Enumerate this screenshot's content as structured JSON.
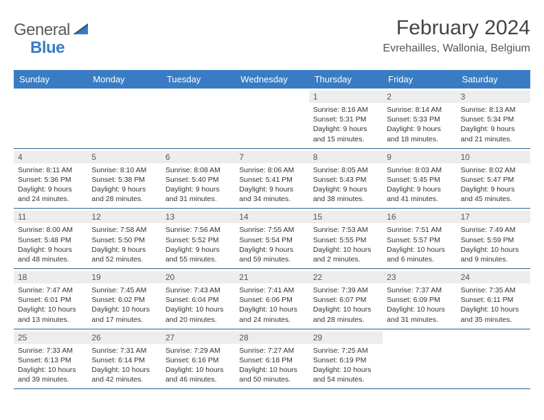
{
  "logo": {
    "word1": "General",
    "word2": "Blue"
  },
  "header": {
    "month_title": "February 2024",
    "location": "Evrehailles, Wallonia, Belgium"
  },
  "colors": {
    "header_bg": "#3a7cc4",
    "header_text": "#ffffff",
    "band_bg": "#ededed",
    "rule": "#2b5d8c"
  },
  "days_of_week": [
    "Sunday",
    "Monday",
    "Tuesday",
    "Wednesday",
    "Thursday",
    "Friday",
    "Saturday"
  ],
  "weeks": [
    [
      {
        "num": "",
        "sunrise": "",
        "sunset": "",
        "daylight": ""
      },
      {
        "num": "",
        "sunrise": "",
        "sunset": "",
        "daylight": ""
      },
      {
        "num": "",
        "sunrise": "",
        "sunset": "",
        "daylight": ""
      },
      {
        "num": "",
        "sunrise": "",
        "sunset": "",
        "daylight": ""
      },
      {
        "num": "1",
        "sunrise": "Sunrise: 8:16 AM",
        "sunset": "Sunset: 5:31 PM",
        "daylight": "Daylight: 9 hours and 15 minutes."
      },
      {
        "num": "2",
        "sunrise": "Sunrise: 8:14 AM",
        "sunset": "Sunset: 5:33 PM",
        "daylight": "Daylight: 9 hours and 18 minutes."
      },
      {
        "num": "3",
        "sunrise": "Sunrise: 8:13 AM",
        "sunset": "Sunset: 5:34 PM",
        "daylight": "Daylight: 9 hours and 21 minutes."
      }
    ],
    [
      {
        "num": "4",
        "sunrise": "Sunrise: 8:11 AM",
        "sunset": "Sunset: 5:36 PM",
        "daylight": "Daylight: 9 hours and 24 minutes."
      },
      {
        "num": "5",
        "sunrise": "Sunrise: 8:10 AM",
        "sunset": "Sunset: 5:38 PM",
        "daylight": "Daylight: 9 hours and 28 minutes."
      },
      {
        "num": "6",
        "sunrise": "Sunrise: 8:08 AM",
        "sunset": "Sunset: 5:40 PM",
        "daylight": "Daylight: 9 hours and 31 minutes."
      },
      {
        "num": "7",
        "sunrise": "Sunrise: 8:06 AM",
        "sunset": "Sunset: 5:41 PM",
        "daylight": "Daylight: 9 hours and 34 minutes."
      },
      {
        "num": "8",
        "sunrise": "Sunrise: 8:05 AM",
        "sunset": "Sunset: 5:43 PM",
        "daylight": "Daylight: 9 hours and 38 minutes."
      },
      {
        "num": "9",
        "sunrise": "Sunrise: 8:03 AM",
        "sunset": "Sunset: 5:45 PM",
        "daylight": "Daylight: 9 hours and 41 minutes."
      },
      {
        "num": "10",
        "sunrise": "Sunrise: 8:02 AM",
        "sunset": "Sunset: 5:47 PM",
        "daylight": "Daylight: 9 hours and 45 minutes."
      }
    ],
    [
      {
        "num": "11",
        "sunrise": "Sunrise: 8:00 AM",
        "sunset": "Sunset: 5:48 PM",
        "daylight": "Daylight: 9 hours and 48 minutes."
      },
      {
        "num": "12",
        "sunrise": "Sunrise: 7:58 AM",
        "sunset": "Sunset: 5:50 PM",
        "daylight": "Daylight: 9 hours and 52 minutes."
      },
      {
        "num": "13",
        "sunrise": "Sunrise: 7:56 AM",
        "sunset": "Sunset: 5:52 PM",
        "daylight": "Daylight: 9 hours and 55 minutes."
      },
      {
        "num": "14",
        "sunrise": "Sunrise: 7:55 AM",
        "sunset": "Sunset: 5:54 PM",
        "daylight": "Daylight: 9 hours and 59 minutes."
      },
      {
        "num": "15",
        "sunrise": "Sunrise: 7:53 AM",
        "sunset": "Sunset: 5:55 PM",
        "daylight": "Daylight: 10 hours and 2 minutes."
      },
      {
        "num": "16",
        "sunrise": "Sunrise: 7:51 AM",
        "sunset": "Sunset: 5:57 PM",
        "daylight": "Daylight: 10 hours and 6 minutes."
      },
      {
        "num": "17",
        "sunrise": "Sunrise: 7:49 AM",
        "sunset": "Sunset: 5:59 PM",
        "daylight": "Daylight: 10 hours and 9 minutes."
      }
    ],
    [
      {
        "num": "18",
        "sunrise": "Sunrise: 7:47 AM",
        "sunset": "Sunset: 6:01 PM",
        "daylight": "Daylight: 10 hours and 13 minutes."
      },
      {
        "num": "19",
        "sunrise": "Sunrise: 7:45 AM",
        "sunset": "Sunset: 6:02 PM",
        "daylight": "Daylight: 10 hours and 17 minutes."
      },
      {
        "num": "20",
        "sunrise": "Sunrise: 7:43 AM",
        "sunset": "Sunset: 6:04 PM",
        "daylight": "Daylight: 10 hours and 20 minutes."
      },
      {
        "num": "21",
        "sunrise": "Sunrise: 7:41 AM",
        "sunset": "Sunset: 6:06 PM",
        "daylight": "Daylight: 10 hours and 24 minutes."
      },
      {
        "num": "22",
        "sunrise": "Sunrise: 7:39 AM",
        "sunset": "Sunset: 6:07 PM",
        "daylight": "Daylight: 10 hours and 28 minutes."
      },
      {
        "num": "23",
        "sunrise": "Sunrise: 7:37 AM",
        "sunset": "Sunset: 6:09 PM",
        "daylight": "Daylight: 10 hours and 31 minutes."
      },
      {
        "num": "24",
        "sunrise": "Sunrise: 7:35 AM",
        "sunset": "Sunset: 6:11 PM",
        "daylight": "Daylight: 10 hours and 35 minutes."
      }
    ],
    [
      {
        "num": "25",
        "sunrise": "Sunrise: 7:33 AM",
        "sunset": "Sunset: 6:13 PM",
        "daylight": "Daylight: 10 hours and 39 minutes."
      },
      {
        "num": "26",
        "sunrise": "Sunrise: 7:31 AM",
        "sunset": "Sunset: 6:14 PM",
        "daylight": "Daylight: 10 hours and 42 minutes."
      },
      {
        "num": "27",
        "sunrise": "Sunrise: 7:29 AM",
        "sunset": "Sunset: 6:16 PM",
        "daylight": "Daylight: 10 hours and 46 minutes."
      },
      {
        "num": "28",
        "sunrise": "Sunrise: 7:27 AM",
        "sunset": "Sunset: 6:18 PM",
        "daylight": "Daylight: 10 hours and 50 minutes."
      },
      {
        "num": "29",
        "sunrise": "Sunrise: 7:25 AM",
        "sunset": "Sunset: 6:19 PM",
        "daylight": "Daylight: 10 hours and 54 minutes."
      },
      {
        "num": "",
        "sunrise": "",
        "sunset": "",
        "daylight": ""
      },
      {
        "num": "",
        "sunrise": "",
        "sunset": "",
        "daylight": ""
      }
    ]
  ]
}
